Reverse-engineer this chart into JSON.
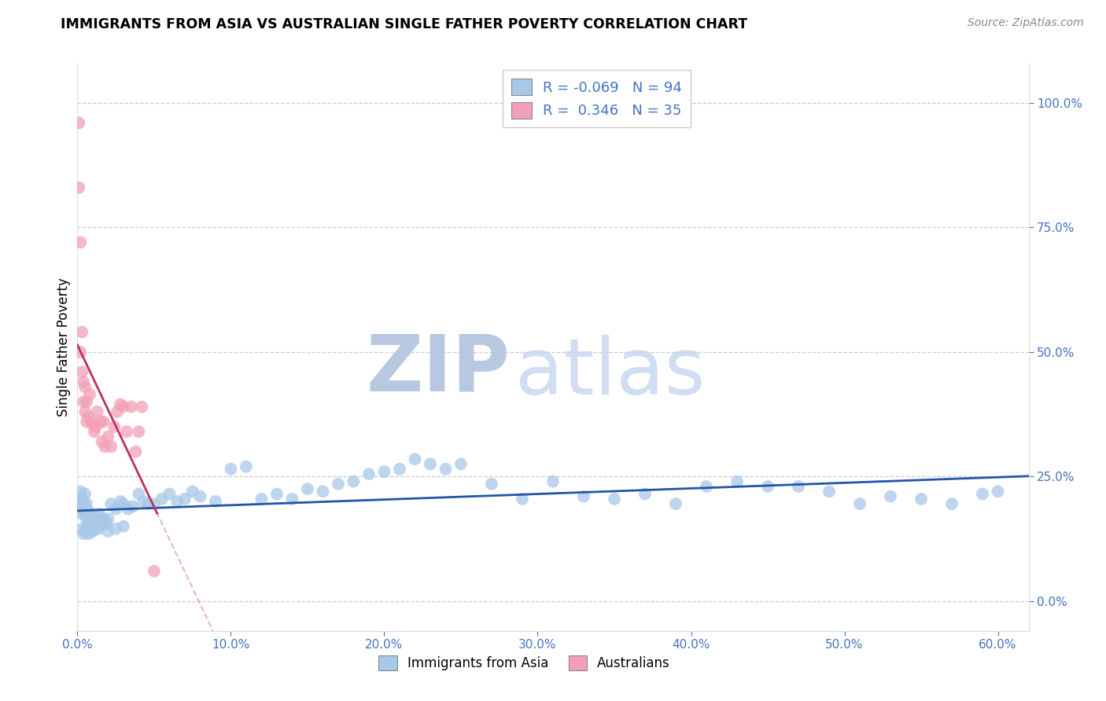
{
  "title": "IMMIGRANTS FROM ASIA VS AUSTRALIAN SINGLE FATHER POVERTY CORRELATION CHART",
  "source": "Source: ZipAtlas.com",
  "ylabel": "Single Father Poverty",
  "legend_label1": "Immigrants from Asia",
  "legend_label2": "Australians",
  "R1": -0.069,
  "N1": 94,
  "R2": 0.346,
  "N2": 35,
  "color_blue": "#A8C8E8",
  "color_pink": "#F2A0B8",
  "line_blue": "#2255AA",
  "line_pink": "#C03060",
  "watermark_zip": "ZIP",
  "watermark_atlas": "atlas",
  "xlim": [
    0.0,
    0.62
  ],
  "ylim": [
    -0.06,
    1.08
  ],
  "xticks": [
    0.0,
    0.1,
    0.2,
    0.3,
    0.4,
    0.5,
    0.6
  ],
  "yticks": [
    0.0,
    0.25,
    0.5,
    0.75,
    1.0
  ],
  "blue_x": [
    0.001,
    0.002,
    0.002,
    0.003,
    0.003,
    0.004,
    0.004,
    0.005,
    0.005,
    0.005,
    0.006,
    0.006,
    0.006,
    0.007,
    0.007,
    0.008,
    0.008,
    0.009,
    0.01,
    0.01,
    0.011,
    0.012,
    0.013,
    0.014,
    0.015,
    0.016,
    0.017,
    0.018,
    0.019,
    0.02,
    0.022,
    0.025,
    0.028,
    0.03,
    0.033,
    0.036,
    0.04,
    0.043,
    0.046,
    0.05,
    0.055,
    0.06,
    0.065,
    0.07,
    0.075,
    0.08,
    0.09,
    0.1,
    0.11,
    0.12,
    0.13,
    0.14,
    0.15,
    0.16,
    0.17,
    0.18,
    0.19,
    0.2,
    0.21,
    0.22,
    0.23,
    0.24,
    0.25,
    0.27,
    0.29,
    0.31,
    0.33,
    0.35,
    0.37,
    0.39,
    0.41,
    0.43,
    0.45,
    0.47,
    0.49,
    0.51,
    0.53,
    0.55,
    0.57,
    0.59,
    0.003,
    0.004,
    0.005,
    0.006,
    0.007,
    0.008,
    0.009,
    0.01,
    0.012,
    0.014,
    0.02,
    0.025,
    0.03,
    0.6
  ],
  "blue_y": [
    0.205,
    0.19,
    0.22,
    0.175,
    0.205,
    0.18,
    0.195,
    0.175,
    0.185,
    0.215,
    0.165,
    0.18,
    0.195,
    0.165,
    0.18,
    0.155,
    0.17,
    0.16,
    0.175,
    0.155,
    0.16,
    0.155,
    0.165,
    0.175,
    0.155,
    0.165,
    0.165,
    0.16,
    0.155,
    0.165,
    0.195,
    0.185,
    0.2,
    0.195,
    0.185,
    0.19,
    0.215,
    0.2,
    0.195,
    0.195,
    0.205,
    0.215,
    0.2,
    0.205,
    0.22,
    0.21,
    0.2,
    0.265,
    0.27,
    0.205,
    0.215,
    0.205,
    0.225,
    0.22,
    0.235,
    0.24,
    0.255,
    0.26,
    0.265,
    0.285,
    0.275,
    0.265,
    0.275,
    0.235,
    0.205,
    0.24,
    0.21,
    0.205,
    0.215,
    0.195,
    0.23,
    0.24,
    0.23,
    0.23,
    0.22,
    0.195,
    0.21,
    0.205,
    0.195,
    0.215,
    0.145,
    0.135,
    0.14,
    0.145,
    0.135,
    0.14,
    0.145,
    0.14,
    0.145,
    0.145,
    0.14,
    0.145,
    0.15,
    0.22
  ],
  "pink_x": [
    0.001,
    0.001,
    0.002,
    0.002,
    0.003,
    0.003,
    0.004,
    0.004,
    0.005,
    0.005,
    0.006,
    0.006,
    0.007,
    0.008,
    0.009,
    0.01,
    0.011,
    0.012,
    0.013,
    0.015,
    0.016,
    0.017,
    0.018,
    0.02,
    0.022,
    0.024,
    0.026,
    0.028,
    0.03,
    0.032,
    0.035,
    0.038,
    0.04,
    0.042,
    0.05
  ],
  "pink_y": [
    0.96,
    0.83,
    0.72,
    0.5,
    0.46,
    0.54,
    0.44,
    0.4,
    0.43,
    0.38,
    0.4,
    0.36,
    0.37,
    0.415,
    0.36,
    0.355,
    0.34,
    0.35,
    0.38,
    0.36,
    0.32,
    0.36,
    0.31,
    0.33,
    0.31,
    0.35,
    0.38,
    0.395,
    0.39,
    0.34,
    0.39,
    0.3,
    0.34,
    0.39,
    0.06
  ],
  "pink_line_x": [
    0.0,
    0.052
  ],
  "dashed_line": [
    [
      0.02,
      0.6
    ],
    [
      0.88,
      0.12
    ]
  ]
}
